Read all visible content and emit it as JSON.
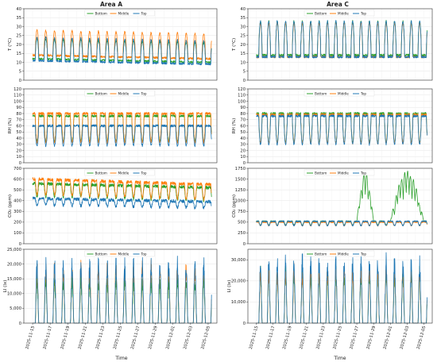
{
  "figure": {
    "columns": [
      {
        "title": "Area A"
      },
      {
        "title": "Area C"
      }
    ],
    "xlabel": "Time",
    "x_ticks": [
      "2025-11-15",
      "2025-11-17",
      "2025-11-19",
      "2025-11-21",
      "2025-11-23",
      "2025-11-25",
      "2025-11-27",
      "2025-11-29",
      "2025-12-01",
      "2025-12-03",
      "2025-12-05"
    ]
  },
  "colors": {
    "Bottom": "#2ca02c",
    "Middle": "#ff7f0e",
    "Top": "#1f77b4"
  },
  "chart_data": [
    {
      "id": "A-T",
      "type": "line",
      "area": "Area A",
      "ylabel": "T (°C)",
      "xlim": [
        "2025-11-14",
        "2025-12-06"
      ],
      "ylim": [
        0,
        40
      ],
      "yticks": [
        0,
        5,
        10,
        15,
        20,
        25,
        30,
        35,
        40
      ],
      "grid": true,
      "legend": "top-center",
      "series": [
        {
          "name": "Bottom",
          "day_peak": 23,
          "night_low": 12,
          "trend_per_day": -0.1
        },
        {
          "name": "Middle",
          "day_peak": 28,
          "night_low": 14,
          "trend_per_day": -0.1
        },
        {
          "name": "Top",
          "day_peak": 24,
          "night_low": 11,
          "trend_per_day": -0.1
        }
      ]
    },
    {
      "id": "C-T",
      "type": "line",
      "area": "Area C",
      "ylabel": "T (°C)",
      "xlim": [
        "2025-11-14",
        "2025-12-06"
      ],
      "ylim": [
        0,
        40
      ],
      "yticks": [
        0,
        5,
        10,
        15,
        20,
        25,
        30,
        35,
        40
      ],
      "grid": true,
      "legend": "top-center",
      "series": [
        {
          "name": "Bottom",
          "day_peak": 33,
          "night_low": 14,
          "trend_per_day": 0
        },
        {
          "name": "Middle",
          "day_peak": 32,
          "night_low": 13,
          "trend_per_day": 0
        },
        {
          "name": "Top",
          "day_peak": 33,
          "night_low": 13,
          "trend_per_day": 0
        }
      ]
    },
    {
      "id": "A-RH",
      "type": "line",
      "area": "Area A",
      "ylabel": "RH (%)",
      "xlim": [
        "2025-11-14",
        "2025-12-06"
      ],
      "ylim": [
        0,
        120
      ],
      "yticks": [
        0,
        10,
        20,
        30,
        40,
        50,
        60,
        70,
        80,
        90,
        100,
        110,
        120
      ],
      "grid": true,
      "legend": "top-center",
      "series": [
        {
          "name": "Bottom",
          "day_low": 35,
          "night_high": 76,
          "trend_per_day": 0
        },
        {
          "name": "Middle",
          "day_low": 33,
          "night_high": 80,
          "trend_per_day": 0
        },
        {
          "name": "Top",
          "day_low": 28,
          "night_high": 60,
          "trend_per_day": 0
        }
      ]
    },
    {
      "id": "C-RH",
      "type": "line",
      "area": "Area C",
      "ylabel": "RH (%)",
      "xlim": [
        "2025-11-14",
        "2025-12-06"
      ],
      "ylim": [
        0,
        120
      ],
      "yticks": [
        0,
        10,
        20,
        30,
        40,
        50,
        60,
        70,
        80,
        90,
        100,
        110,
        120
      ],
      "grid": true,
      "legend": "top-center",
      "series": [
        {
          "name": "Bottom",
          "day_low": 32,
          "night_high": 80,
          "trend_per_day": 0
        },
        {
          "name": "Middle",
          "day_low": 32,
          "night_high": 78,
          "trend_per_day": 0
        },
        {
          "name": "Top",
          "day_low": 30,
          "night_high": 76,
          "trend_per_day": 0
        }
      ]
    },
    {
      "id": "A-CO2",
      "type": "line",
      "area": "Area A",
      "ylabel": "CO₂ (ppm)",
      "xlim": [
        "2025-11-14",
        "2025-12-06"
      ],
      "ylim": [
        0,
        700
      ],
      "yticks": [
        0,
        100,
        200,
        300,
        400,
        500,
        600,
        700
      ],
      "grid": true,
      "legend": "top-center",
      "series": [
        {
          "name": "Bottom",
          "night_high": 560,
          "day_low": 440,
          "trend_per_day": -2
        },
        {
          "name": "Middle",
          "night_high": 600,
          "day_low": 460,
          "trend_per_day": -2.5
        },
        {
          "name": "Top",
          "night_high": 420,
          "day_low": 360,
          "trend_per_day": -1.5
        }
      ]
    },
    {
      "id": "C-CO2",
      "type": "line",
      "area": "Area C",
      "ylabel": "CO₂ (ppm)",
      "xlim": [
        "2025-11-14",
        "2025-12-06"
      ],
      "ylim": [
        0,
        1750
      ],
      "yticks": [
        0,
        250,
        500,
        750,
        1000,
        1250,
        1500,
        1750
      ],
      "grid": true,
      "legend": "top-center",
      "series": [
        {
          "name": "Bottom",
          "night_high": 520,
          "day_low": 430,
          "trend_per_day": 0,
          "spikes": [
            {
              "start": "2025-11-27",
              "end": "2025-11-29",
              "peak": 1650
            },
            {
              "start": "2025-12-01",
              "end": "2025-12-05",
              "peak": 1680
            }
          ]
        },
        {
          "name": "Middle",
          "night_high": 500,
          "day_low": 420,
          "trend_per_day": 0
        },
        {
          "name": "Top",
          "night_high": 520,
          "day_low": 420,
          "trend_per_day": 0
        }
      ]
    },
    {
      "id": "A-LI",
      "type": "line",
      "area": "Area A",
      "ylabel": "LI (lx)",
      "xlim": [
        "2025-11-14",
        "2025-12-06"
      ],
      "ylim": [
        0,
        25000
      ],
      "yticks": [
        0,
        5000,
        10000,
        15000,
        20000,
        25000
      ],
      "ytick_labels": [
        "0",
        "5,000",
        "10,000",
        "15,000",
        "20,000",
        "25,000"
      ],
      "grid": true,
      "legend": "top-center",
      "series": [
        {
          "name": "Bottom",
          "day_peak": 14000,
          "night_low": 0
        },
        {
          "name": "Middle",
          "day_peak": 18000,
          "night_low": 0
        },
        {
          "name": "Top",
          "day_peak": 19000,
          "night_low": 0
        }
      ]
    },
    {
      "id": "C-LI",
      "type": "line",
      "area": "Area C",
      "ylabel": "LI (lx)",
      "xlim": [
        "2025-11-14",
        "2025-12-06"
      ],
      "ylim": [
        0,
        35000
      ],
      "yticks": [
        0,
        10000,
        20000,
        30000
      ],
      "ytick_labels": [
        "0",
        "10,000",
        "20,000",
        "30,000"
      ],
      "grid": true,
      "legend": "top-center",
      "series": [
        {
          "name": "Bottom",
          "day_peak": 23000,
          "night_low": 0
        },
        {
          "name": "Middle",
          "day_peak": 24000,
          "night_low": 0
        },
        {
          "name": "Top",
          "day_peak": 28000,
          "night_low": 0
        }
      ]
    }
  ]
}
